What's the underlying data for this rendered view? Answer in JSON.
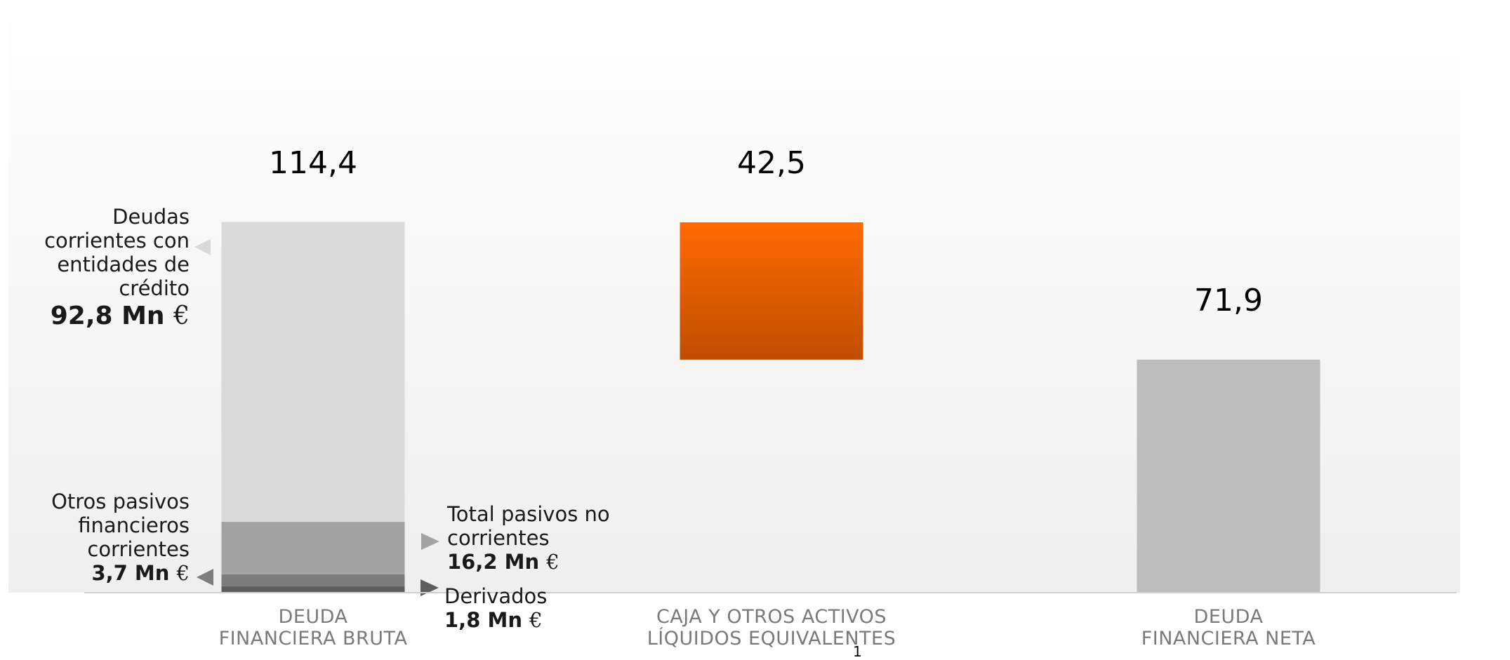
{
  "chart_data": {
    "type": "bar",
    "subtype": "waterfall",
    "categories": [
      "DEUDA\nFINANCIERA BRUTA",
      "CAJA Y OTROS ACTIVOS\nLÍQUIDOS EQUIVALENTES",
      "DEUDA\nFINANCIERA NETA"
    ],
    "totals": [
      114.4,
      42.5,
      71.9
    ],
    "total_labels": [
      "114,4",
      "42,5",
      "71,9"
    ],
    "waterfall_base": [
      0,
      71.9,
      0
    ],
    "stack_first_bar": [
      {
        "name": "Derivados",
        "value": 1.8,
        "color": "#5e5e5e"
      },
      {
        "name": "Otros pasivos financieros corrientes",
        "value": 3.7,
        "color": "#7d7d7d"
      },
      {
        "name": "Total pasivos no corrientes",
        "value": 16.2,
        "color": "#a3a3a3"
      },
      {
        "name": "Deudas corrientes con entidades de crédito",
        "value": 92.8,
        "color": "#d9d9d9"
      }
    ],
    "bar_colors": {
      "cash_top": "#ff6a00",
      "cash_bottom": "#c04e00",
      "net": "#bdbdbd"
    },
    "ylim": [
      0,
      114.4
    ],
    "grid": false,
    "legend": "none"
  },
  "annotations": {
    "deudas_corrientes": {
      "lines": [
        "Deudas",
        "corrientes con",
        "entidades de",
        "crédito"
      ],
      "value": "92,8 Mn",
      "unit": "€"
    },
    "otros_pasivos": {
      "lines": [
        "Otros pasivos",
        "financieros",
        "corrientes"
      ],
      "value": "3,7 Mn",
      "unit": "€"
    },
    "pasivos_no_corrientes": {
      "lines": [
        "Total pasivos no",
        "corrientes"
      ],
      "value": "16,2 Mn",
      "unit": "€"
    },
    "derivados": {
      "lines": [
        "Derivados"
      ],
      "value": "1,8 Mn",
      "unit": "€"
    }
  },
  "page_marker": "1"
}
